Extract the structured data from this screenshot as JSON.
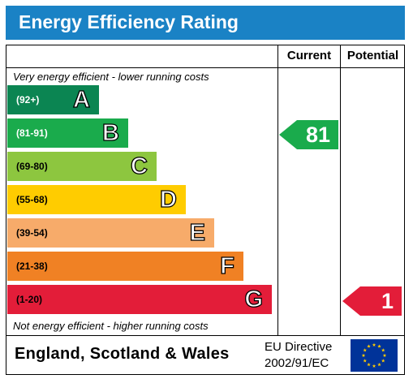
{
  "header": {
    "title": "Energy Efficiency Rating"
  },
  "columns": {
    "current": "Current",
    "potential": "Potential"
  },
  "notes": {
    "top": "Very energy efficient - lower running costs",
    "bottom": "Not energy efficient - higher running costs"
  },
  "chart_data": {
    "type": "bar",
    "bands": [
      {
        "range": "(92+)",
        "letter": "A",
        "color": "#0b8552",
        "range_color": "#ffffff"
      },
      {
        "range": "(81-91)",
        "letter": "B",
        "color": "#1aab4c",
        "range_color": "#ffffff"
      },
      {
        "range": "(69-80)",
        "letter": "C",
        "color": "#8dc63f",
        "range_color": "#000000"
      },
      {
        "range": "(55-68)",
        "letter": "D",
        "color": "#ffcc00",
        "range_color": "#000000"
      },
      {
        "range": "(39-54)",
        "letter": "E",
        "color": "#f7ab6a",
        "range_color": "#000000"
      },
      {
        "range": "(21-38)",
        "letter": "F",
        "color": "#f08124",
        "range_color": "#000000"
      },
      {
        "range": "(1-20)",
        "letter": "G",
        "color": "#e31d39",
        "range_color": "#000000"
      }
    ],
    "current": {
      "value": 81,
      "band": "B",
      "color": "#1aab4c"
    },
    "potential": {
      "value": 1,
      "band": "G",
      "color": "#e31d39"
    }
  },
  "footer": {
    "region": "England, Scotland & Wales",
    "directive_line1": "EU Directive",
    "directive_line2": "2002/91/EC",
    "flag_icon": "eu-flag-icon"
  }
}
